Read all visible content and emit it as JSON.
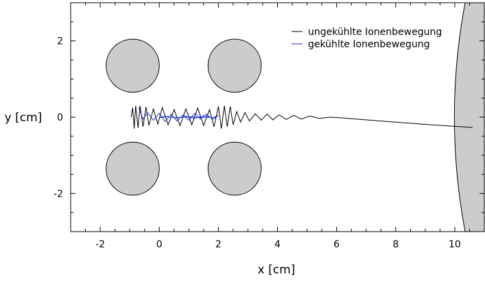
{
  "chart_data": {
    "type": "line",
    "xlabel": "x [cm]",
    "ylabel": "y [cm]",
    "xlim": [
      -3,
      11
    ],
    "ylim": [
      -3,
      3
    ],
    "x_ticks": [
      -2,
      0,
      2,
      4,
      6,
      8,
      10
    ],
    "y_ticks": [
      -2,
      0,
      2
    ],
    "legend_position": "top-right",
    "electrodes": [
      {
        "cx": -0.9,
        "cy": 1.35,
        "r": 0.9,
        "color": "#cccccc"
      },
      {
        "cx": 2.55,
        "cy": 1.35,
        "r": 0.9,
        "color": "#cccccc"
      },
      {
        "cx": -0.9,
        "cy": -1.35,
        "r": 0.9,
        "color": "#cccccc"
      },
      {
        "cx": 2.55,
        "cy": -1.35,
        "r": 0.9,
        "color": "#cccccc"
      }
    ],
    "detector_arc": {
      "color": "#cccccc"
    },
    "series": [
      {
        "name": "ungekühlte Ionenbewegung",
        "color": "#000000",
        "points": [
          [
            -0.95,
            0.0
          ],
          [
            -0.9,
            0.25
          ],
          [
            -0.85,
            -0.3
          ],
          [
            -0.8,
            0.3
          ],
          [
            -0.72,
            -0.28
          ],
          [
            -0.65,
            0.3
          ],
          [
            -0.55,
            -0.25
          ],
          [
            -0.45,
            0.27
          ],
          [
            -0.35,
            -0.22
          ],
          [
            -0.2,
            0.22
          ],
          [
            -0.05,
            -0.18
          ],
          [
            0.1,
            0.25
          ],
          [
            0.3,
            -0.2
          ],
          [
            0.5,
            0.2
          ],
          [
            0.7,
            -0.22
          ],
          [
            0.9,
            0.22
          ],
          [
            1.1,
            -0.2
          ],
          [
            1.3,
            0.24
          ],
          [
            1.5,
            -0.22
          ],
          [
            1.7,
            0.2
          ],
          [
            1.85,
            -0.25
          ],
          [
            2.0,
            0.28
          ],
          [
            2.1,
            -0.3
          ],
          [
            2.2,
            0.3
          ],
          [
            2.3,
            -0.25
          ],
          [
            2.4,
            0.28
          ],
          [
            2.5,
            -0.2
          ],
          [
            2.62,
            0.15
          ],
          [
            2.75,
            -0.13
          ],
          [
            2.9,
            0.12
          ],
          [
            3.05,
            -0.1
          ],
          [
            3.25,
            0.09
          ],
          [
            3.45,
            -0.08
          ],
          [
            3.65,
            0.08
          ],
          [
            3.85,
            -0.07
          ],
          [
            4.05,
            0.06
          ],
          [
            4.3,
            -0.06
          ],
          [
            4.55,
            0.05
          ],
          [
            4.8,
            -0.05
          ],
          [
            5.1,
            0.03
          ],
          [
            5.4,
            -0.03
          ],
          [
            5.8,
            0.0
          ],
          [
            6.2,
            -0.02
          ],
          [
            6.8,
            -0.06
          ],
          [
            7.5,
            -0.1
          ],
          [
            8.3,
            -0.15
          ],
          [
            9.2,
            -0.2
          ],
          [
            10.0,
            -0.24
          ],
          [
            10.6,
            -0.27
          ]
        ]
      },
      {
        "name": "gekühlte Ionenbewegung",
        "color": "#1f2fd6",
        "points": [
          [
            -0.7,
            0.25
          ],
          [
            -0.55,
            -0.05
          ],
          [
            -0.4,
            0.12
          ],
          [
            -0.2,
            -0.08
          ],
          [
            0.0,
            0.1
          ],
          [
            0.2,
            -0.12
          ],
          [
            0.4,
            0.08
          ],
          [
            0.6,
            -0.1
          ],
          [
            0.8,
            0.06
          ],
          [
            1.0,
            -0.08
          ],
          [
            1.2,
            0.1
          ],
          [
            1.4,
            -0.05
          ],
          [
            1.6,
            0.08
          ],
          [
            1.8,
            -0.06
          ],
          [
            2.0,
            0.05
          ],
          [
            1.8,
            -0.02
          ],
          [
            1.5,
            0.04
          ],
          [
            1.2,
            -0.03
          ],
          [
            0.9,
            0.02
          ],
          [
            0.6,
            -0.02
          ],
          [
            0.3,
            0.01
          ],
          [
            0.0,
            -0.01
          ],
          [
            0.2,
            0.02
          ],
          [
            0.5,
            -0.01
          ],
          [
            0.8,
            0.0
          ],
          [
            1.1,
            0.01
          ],
          [
            1.4,
            -0.01
          ],
          [
            1.7,
            0.0
          ]
        ]
      }
    ]
  }
}
